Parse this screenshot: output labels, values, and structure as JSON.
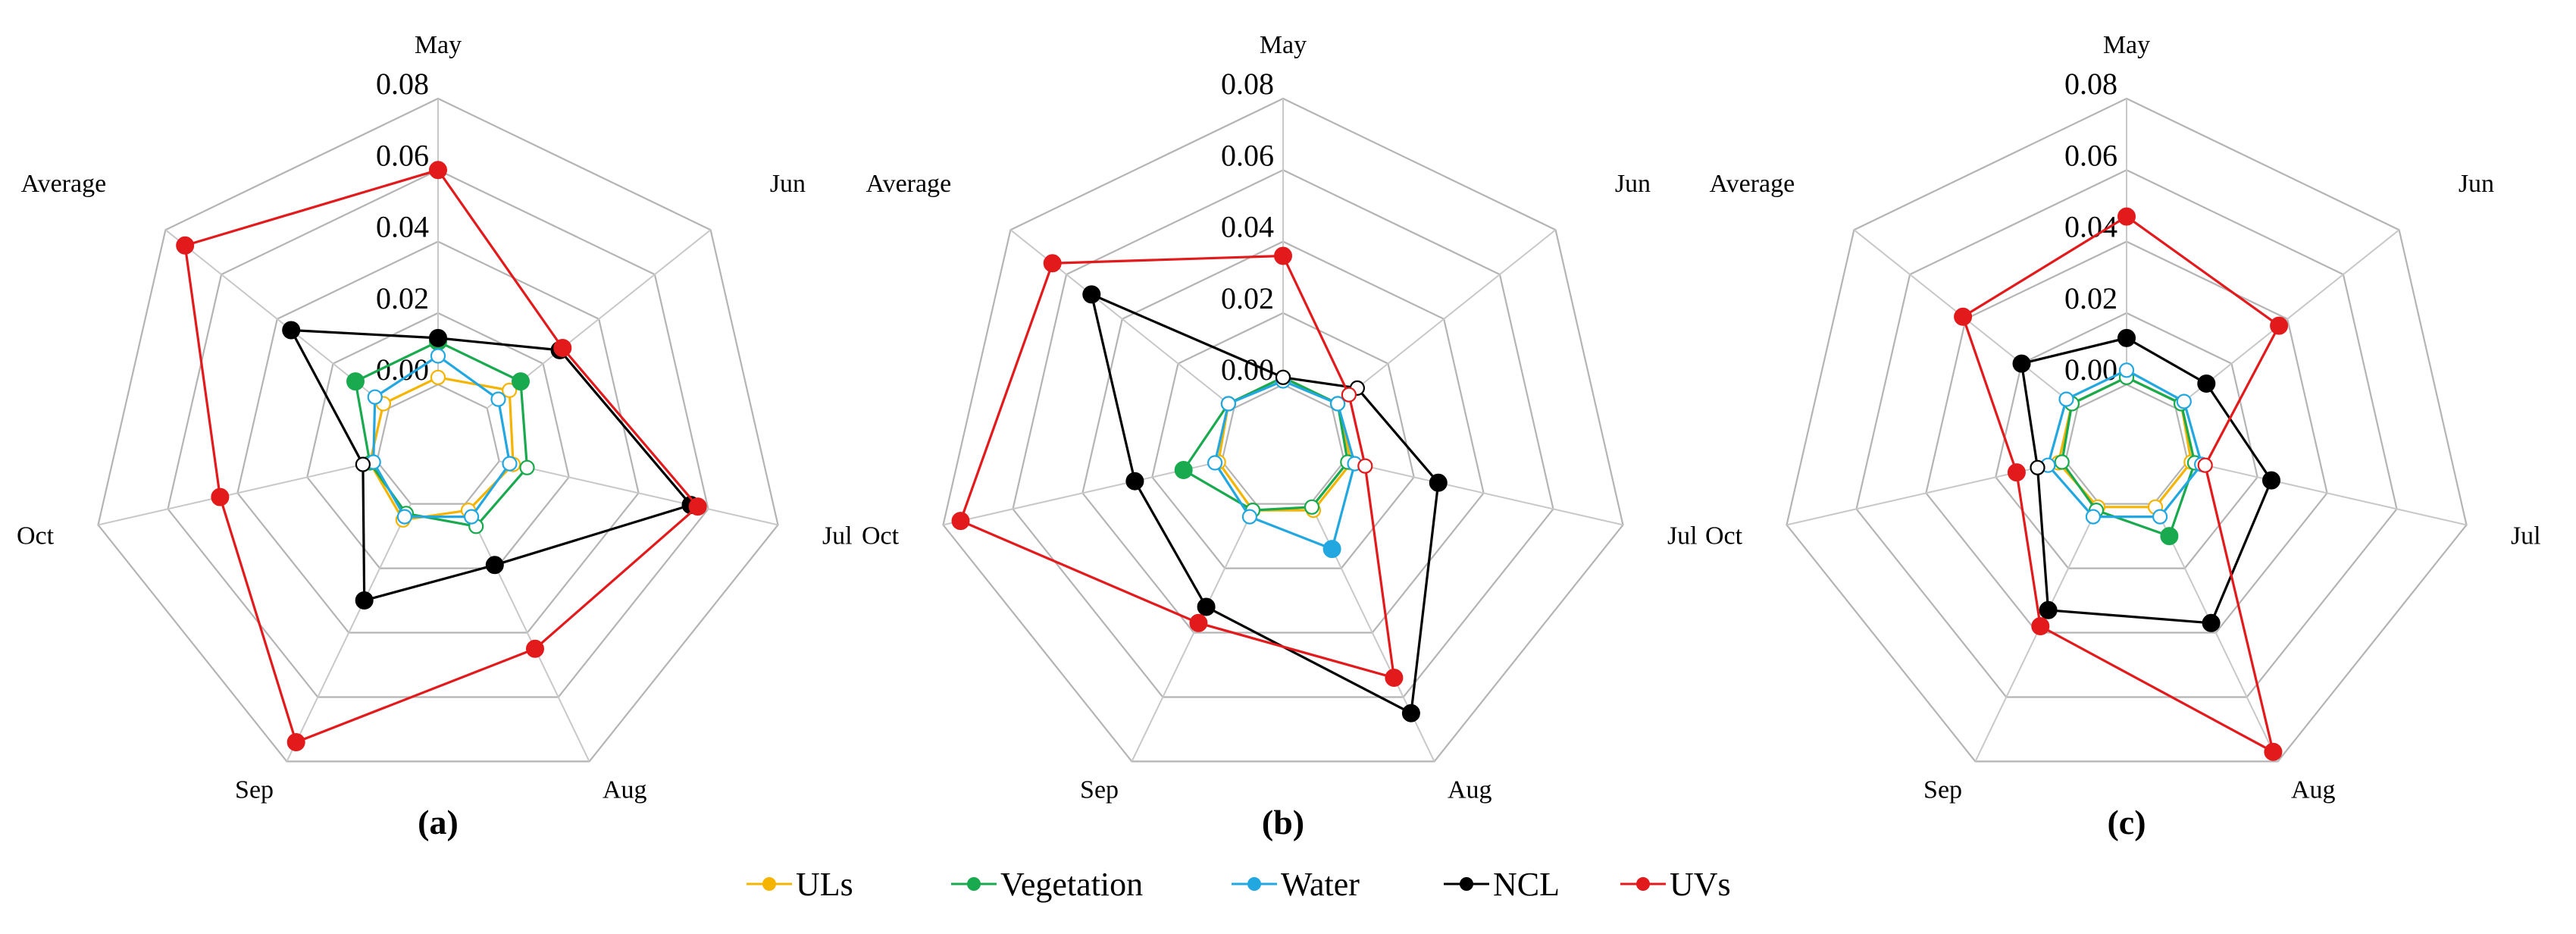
{
  "colors": {
    "ULs": "#f5b400",
    "Vegetation": "#19a94e",
    "Water": "#22a7e0",
    "NCL": "#000000",
    "UVs": "#e31a1c",
    "grid": "#b4b4b4"
  },
  "legend": [
    {
      "name": "ULs",
      "label": "ULs"
    },
    {
      "name": "Vegetation",
      "label": "Vegetation"
    },
    {
      "name": "Water",
      "label": "Water"
    },
    {
      "name": "NCL",
      "label": "NCL"
    },
    {
      "name": "UVs",
      "label": "UVs"
    }
  ],
  "chart_data": [
    {
      "type": "radar",
      "panel_label": "(a)",
      "categories": [
        "May",
        "Jun",
        "Jul",
        "Aug",
        "Sep",
        "Oct",
        "Average"
      ],
      "rlim": [
        0,
        0.08
      ],
      "ticks": [
        "0.00",
        "0.02",
        "0.04",
        "0.06",
        "0.08"
      ],
      "series": [
        {
          "name": "ULs",
          "values": [
            0.002,
            0.008,
            0.004,
            0.002,
            0.005,
            0.002,
            0.002
          ]
        },
        {
          "name": "Vegetation",
          "values": [
            0.012,
            0.012,
            0.008,
            0.007,
            0.003,
            0.002,
            0.012
          ]
        },
        {
          "name": "Water",
          "values": [
            0.008,
            0.004,
            0.003,
            0.004,
            0.004,
            0.001,
            0.005
          ]
        },
        {
          "name": "NCL",
          "values": [
            0.013,
            0.026,
            0.055,
            0.019,
            0.03,
            0.004,
            0.035
          ]
        },
        {
          "name": "UVs",
          "values": [
            0.06,
            0.027,
            0.057,
            0.045,
            0.074,
            0.045,
            0.073
          ]
        }
      ]
    },
    {
      "type": "radar",
      "panel_label": "(b)",
      "categories": [
        "May",
        "Jun",
        "Jul",
        "Aug",
        "Sep",
        "Oct",
        "Average"
      ],
      "rlim": [
        0,
        0.08
      ],
      "ticks": [
        "0.00",
        "0.02",
        "0.04",
        "0.06",
        "0.08"
      ],
      "series": [
        {
          "name": "ULs",
          "values": [
            0.002,
            0.002,
            0.002,
            0.002,
            0.002,
            0.001,
            0.002
          ]
        },
        {
          "name": "Vegetation",
          "values": [
            0.002,
            0.002,
            0.001,
            0.001,
            0.002,
            0.011,
            0.002
          ]
        },
        {
          "name": "Water",
          "values": [
            0.001,
            0.002,
            0.003,
            0.014,
            0.004,
            0.002,
            0.002
          ]
        },
        {
          "name": "NCL",
          "values": [
            0.002,
            0.009,
            0.027,
            0.065,
            0.032,
            0.025,
            0.051
          ]
        },
        {
          "name": "UVs",
          "values": [
            0.036,
            0.006,
            0.006,
            0.054,
            0.037,
            0.075,
            0.065
          ]
        }
      ]
    },
    {
      "type": "radar",
      "panel_label": "(c)",
      "categories": [
        "May",
        "Jun",
        "Jul",
        "Aug",
        "Sep",
        "Oct",
        "Average"
      ],
      "rlim": [
        0,
        0.08
      ],
      "ticks": [
        "0.00",
        "0.02",
        "0.04",
        "0.06",
        "0.08"
      ],
      "series": [
        {
          "name": "ULs",
          "values": [
            0.002,
            0.002,
            0.001,
            0.001,
            0.001,
            0.002,
            0.002
          ]
        },
        {
          "name": "Vegetation",
          "values": [
            0.002,
            0.002,
            0.002,
            0.01,
            0.002,
            0.001,
            0.002
          ]
        },
        {
          "name": "Water",
          "values": [
            0.004,
            0.003,
            0.004,
            0.004,
            0.004,
            0.005,
            0.004
          ]
        },
        {
          "name": "NCL",
          "values": [
            0.013,
            0.011,
            0.024,
            0.037,
            0.033,
            0.008,
            0.02
          ]
        },
        {
          "name": "UVs",
          "values": [
            0.047,
            0.037,
            0.005,
            0.077,
            0.038,
            0.014,
            0.041
          ]
        }
      ]
    }
  ]
}
